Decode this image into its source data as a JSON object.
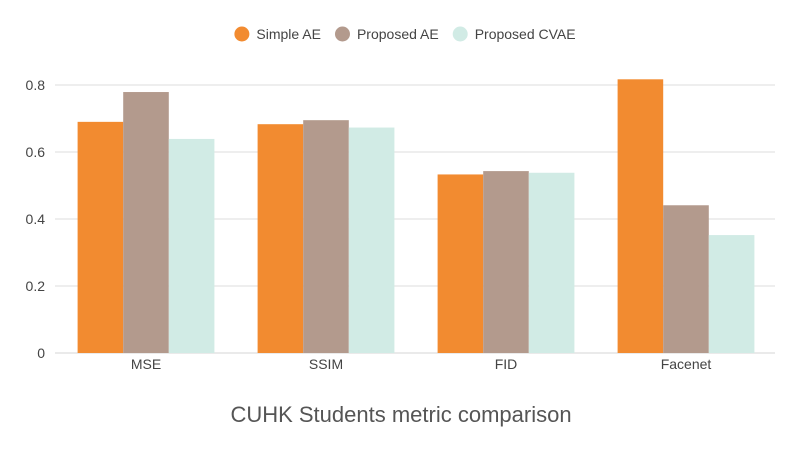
{
  "chart_data": {
    "type": "bar",
    "title": "CUHK Students metric comparison",
    "xlabel": "",
    "ylabel": "",
    "categories": [
      "MSE",
      "SSIM",
      "FID",
      "Facenet"
    ],
    "series": [
      {
        "name": "Simple AE",
        "color": "#f28b30",
        "values": [
          0.69,
          0.683,
          0.533,
          0.817
        ]
      },
      {
        "name": "Proposed AE",
        "color": "#b39a8d",
        "values": [
          0.779,
          0.695,
          0.543,
          0.441
        ]
      },
      {
        "name": "Proposed CVAE",
        "color": "#d1ebe5",
        "values": [
          0.639,
          0.673,
          0.538,
          0.352
        ]
      }
    ],
    "ylim": [
      0,
      0.8
    ],
    "yticks": [
      0,
      0.2,
      0.4,
      0.6,
      0.8
    ],
    "ytick_labels": [
      "0",
      "0.2",
      "0.4",
      "0.6",
      "0.8"
    ],
    "grid": true,
    "legend_position": "top"
  }
}
